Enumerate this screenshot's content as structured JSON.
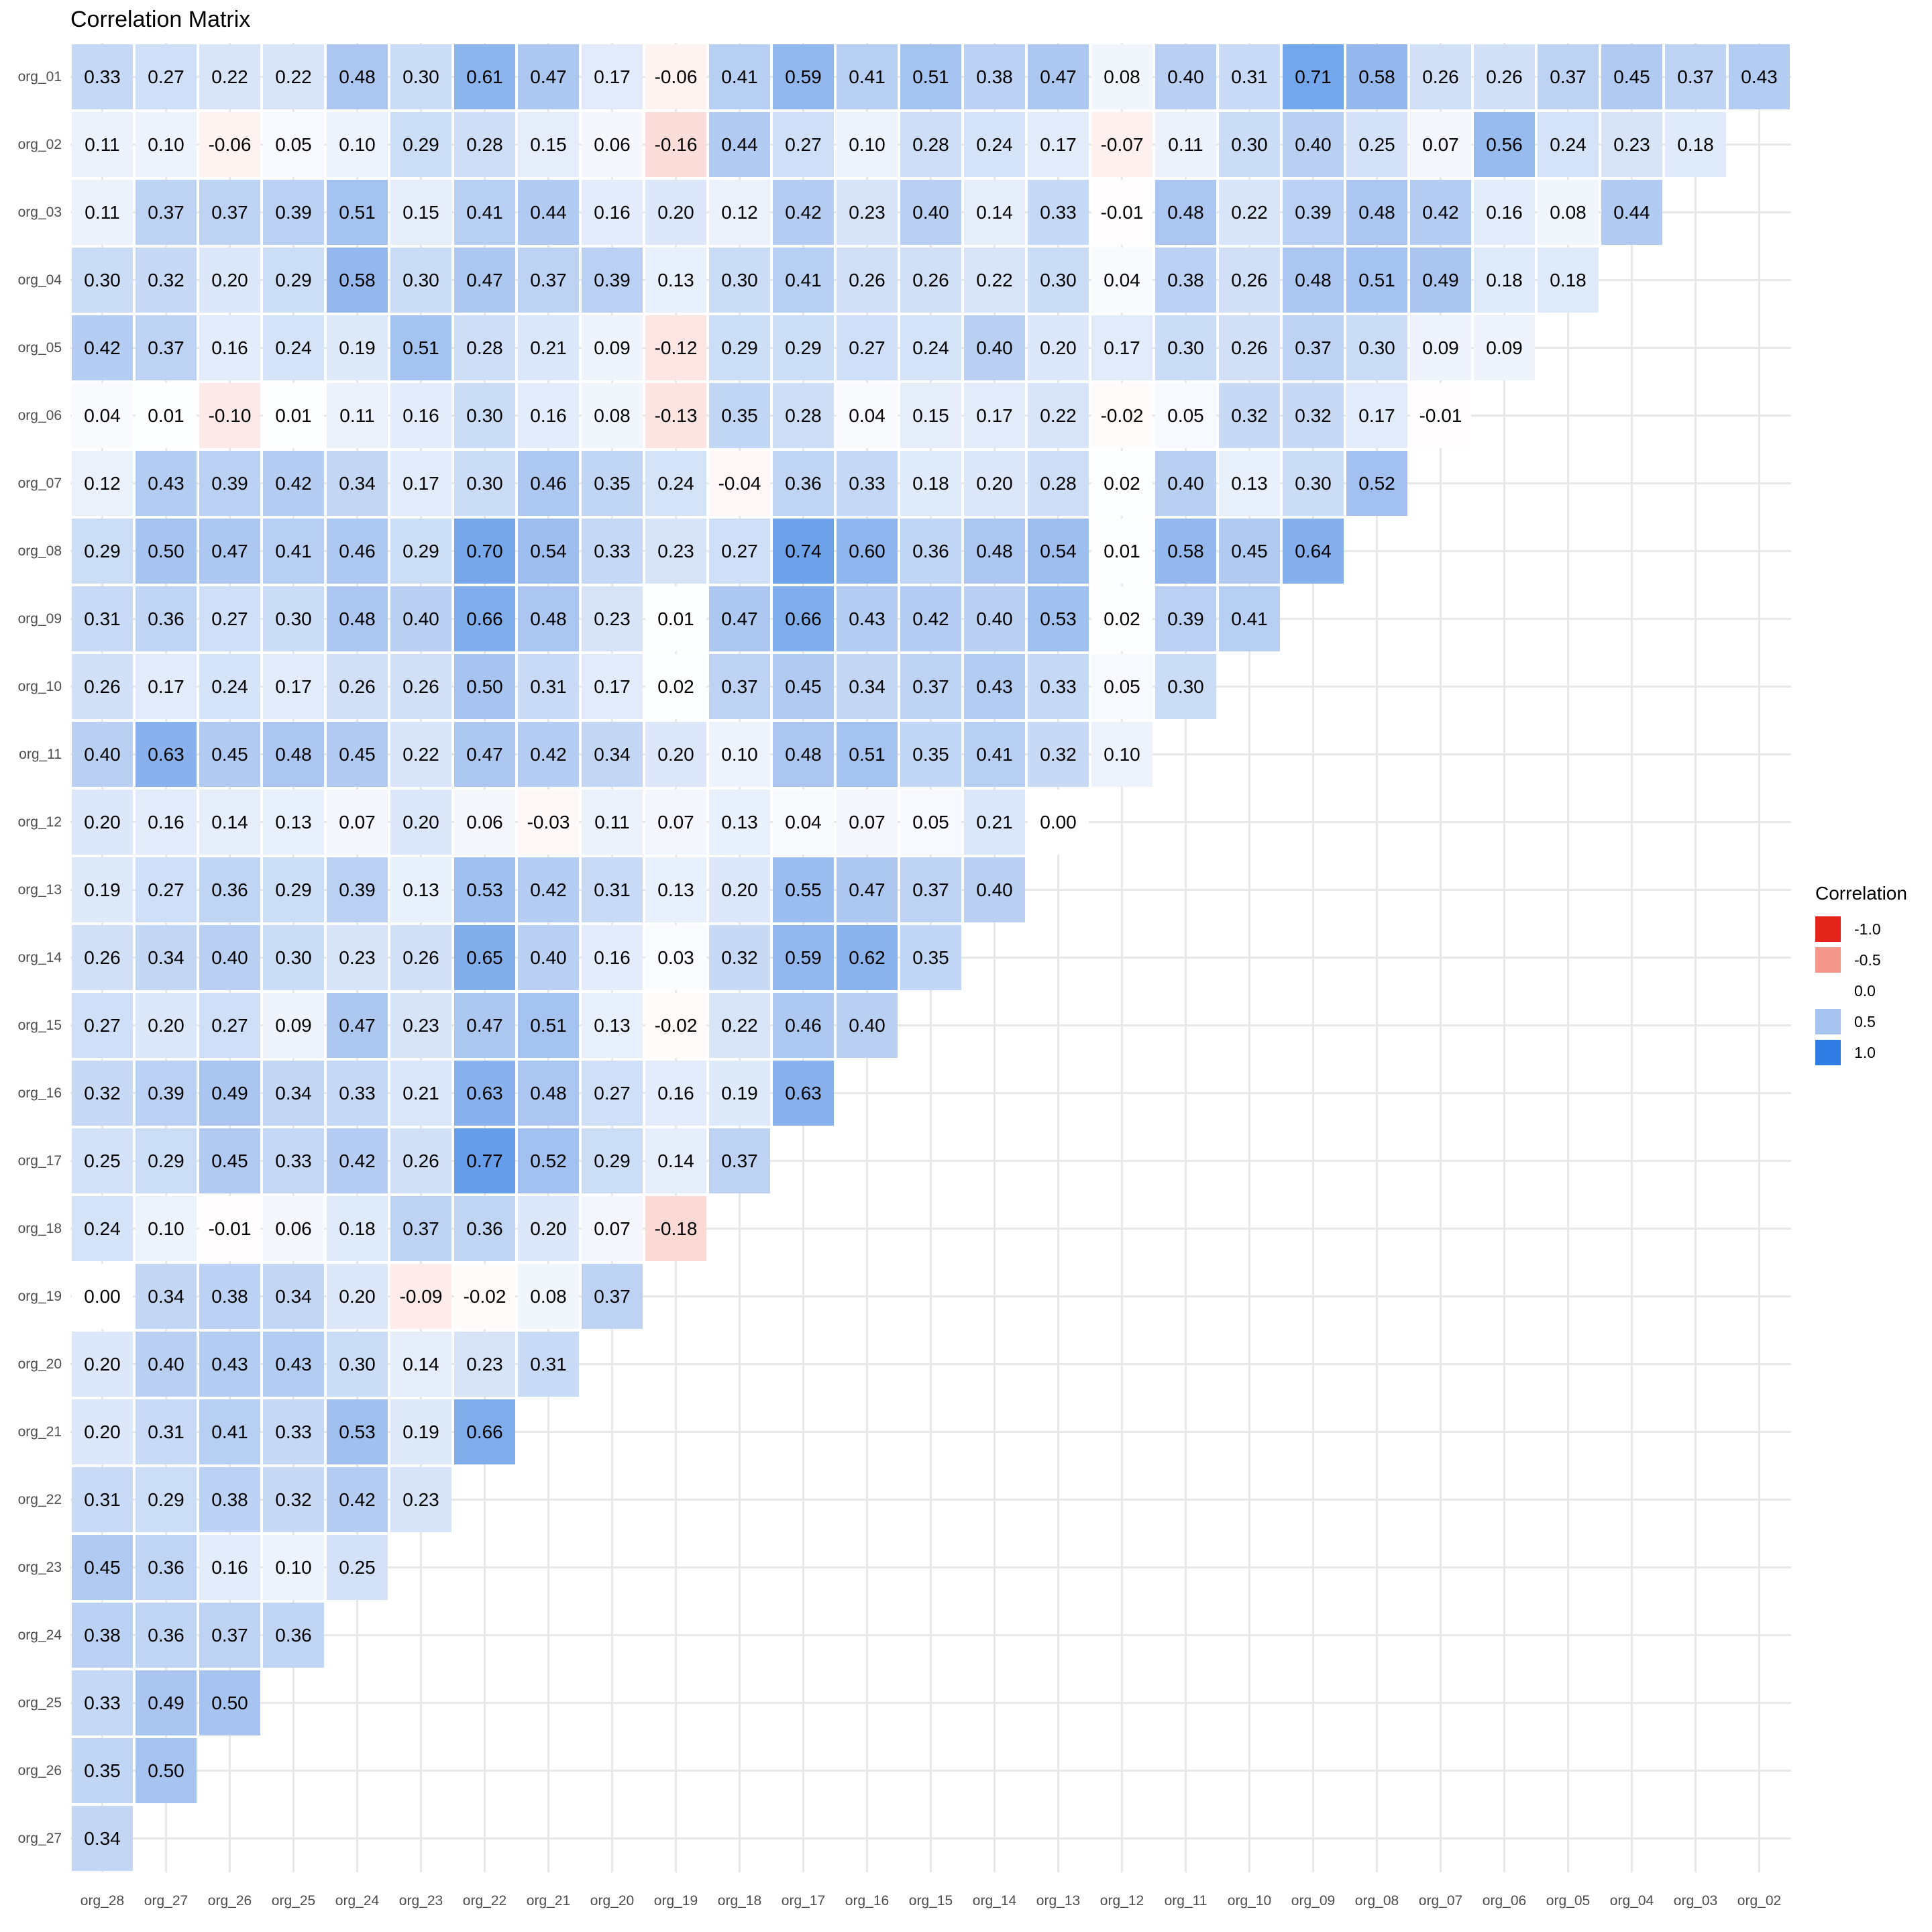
{
  "chart_data": {
    "type": "heatmap",
    "title": "Correlation Matrix",
    "rows": [
      "org_01",
      "org_02",
      "org_03",
      "org_04",
      "org_05",
      "org_06",
      "org_07",
      "org_08",
      "org_09",
      "org_10",
      "org_11",
      "org_12",
      "org_13",
      "org_14",
      "org_15",
      "org_16",
      "org_17",
      "org_18",
      "org_19",
      "org_20",
      "org_21",
      "org_22",
      "org_23",
      "org_24",
      "org_25",
      "org_26",
      "org_27"
    ],
    "columns": [
      "org_28",
      "org_27",
      "org_26",
      "org_25",
      "org_24",
      "org_23",
      "org_22",
      "org_21",
      "org_20",
      "org_19",
      "org_18",
      "org_17",
      "org_16",
      "org_15",
      "org_14",
      "org_13",
      "org_12",
      "org_11",
      "org_10",
      "org_09",
      "org_08",
      "org_07",
      "org_06",
      "org_05",
      "org_04",
      "org_03",
      "org_02"
    ],
    "values": [
      [
        0.33,
        0.27,
        0.22,
        0.22,
        0.48,
        0.3,
        0.61,
        0.47,
        0.17,
        -0.06,
        0.41,
        0.59,
        0.41,
        0.51,
        0.38,
        0.47,
        0.08,
        0.4,
        0.31,
        0.71,
        0.58,
        0.26,
        0.26,
        0.37,
        0.45,
        0.37,
        0.43
      ],
      [
        0.11,
        0.1,
        -0.06,
        0.05,
        0.1,
        0.29,
        0.28,
        0.15,
        0.06,
        -0.16,
        0.44,
        0.27,
        0.1,
        0.28,
        0.24,
        0.17,
        -0.07,
        0.11,
        0.3,
        0.4,
        0.25,
        0.07,
        0.56,
        0.24,
        0.23,
        0.18
      ],
      [
        0.11,
        0.37,
        0.37,
        0.39,
        0.51,
        0.15,
        0.41,
        0.44,
        0.16,
        0.2,
        0.12,
        0.42,
        0.23,
        0.4,
        0.14,
        0.33,
        -0.01,
        0.48,
        0.22,
        0.39,
        0.48,
        0.42,
        0.16,
        0.08,
        0.44
      ],
      [
        0.3,
        0.32,
        0.2,
        0.29,
        0.58,
        0.3,
        0.47,
        0.37,
        0.39,
        0.13,
        0.3,
        0.41,
        0.26,
        0.26,
        0.22,
        0.3,
        0.04,
        0.38,
        0.26,
        0.48,
        0.51,
        0.49,
        0.18,
        0.18
      ],
      [
        0.42,
        0.37,
        0.16,
        0.24,
        0.19,
        0.51,
        0.28,
        0.21,
        0.09,
        -0.12,
        0.29,
        0.29,
        0.27,
        0.24,
        0.4,
        0.2,
        0.17,
        0.3,
        0.26,
        0.37,
        0.3,
        0.09,
        0.09
      ],
      [
        0.04,
        0.01,
        -0.1,
        0.01,
        0.11,
        0.16,
        0.3,
        0.16,
        0.08,
        -0.13,
        0.35,
        0.28,
        0.04,
        0.15,
        0.17,
        0.22,
        -0.02,
        0.05,
        0.32,
        0.32,
        0.17,
        -0.01
      ],
      [
        0.12,
        0.43,
        0.39,
        0.42,
        0.34,
        0.17,
        0.3,
        0.46,
        0.35,
        0.24,
        -0.04,
        0.36,
        0.33,
        0.18,
        0.2,
        0.28,
        0.02,
        0.4,
        0.13,
        0.3,
        0.52
      ],
      [
        0.29,
        0.5,
        0.47,
        0.41,
        0.46,
        0.29,
        0.7,
        0.54,
        0.33,
        0.23,
        0.27,
        0.74,
        0.6,
        0.36,
        0.48,
        0.54,
        0.01,
        0.58,
        0.45,
        0.64
      ],
      [
        0.31,
        0.36,
        0.27,
        0.3,
        0.48,
        0.4,
        0.66,
        0.48,
        0.23,
        0.01,
        0.47,
        0.66,
        0.43,
        0.42,
        0.4,
        0.53,
        0.02,
        0.39,
        0.41
      ],
      [
        0.26,
        0.17,
        0.24,
        0.17,
        0.26,
        0.26,
        0.5,
        0.31,
        0.17,
        0.02,
        0.37,
        0.45,
        0.34,
        0.37,
        0.43,
        0.33,
        0.05,
        0.3
      ],
      [
        0.4,
        0.63,
        0.45,
        0.48,
        0.45,
        0.22,
        0.47,
        0.42,
        0.34,
        0.2,
        0.1,
        0.48,
        0.51,
        0.35,
        0.41,
        0.32,
        0.1
      ],
      [
        0.2,
        0.16,
        0.14,
        0.13,
        0.07,
        0.2,
        0.06,
        -0.03,
        0.11,
        0.07,
        0.13,
        0.04,
        0.07,
        0.05,
        0.21,
        0.0
      ],
      [
        0.19,
        0.27,
        0.36,
        0.29,
        0.39,
        0.13,
        0.53,
        0.42,
        0.31,
        0.13,
        0.2,
        0.55,
        0.47,
        0.37,
        0.4
      ],
      [
        0.26,
        0.34,
        0.4,
        0.3,
        0.23,
        0.26,
        0.65,
        0.4,
        0.16,
        0.03,
        0.32,
        0.59,
        0.62,
        0.35
      ],
      [
        0.27,
        0.2,
        0.27,
        0.09,
        0.47,
        0.23,
        0.47,
        0.51,
        0.13,
        -0.02,
        0.22,
        0.46,
        0.4
      ],
      [
        0.32,
        0.39,
        0.49,
        0.34,
        0.33,
        0.21,
        0.63,
        0.48,
        0.27,
        0.16,
        0.19,
        0.63
      ],
      [
        0.25,
        0.29,
        0.45,
        0.33,
        0.42,
        0.26,
        0.77,
        0.52,
        0.29,
        0.14,
        0.37
      ],
      [
        0.24,
        0.1,
        -0.01,
        0.06,
        0.18,
        0.37,
        0.36,
        0.2,
        0.07,
        -0.18
      ],
      [
        0.0,
        0.34,
        0.38,
        0.34,
        0.2,
        -0.09,
        -0.02,
        0.08,
        0.37
      ],
      [
        0.2,
        0.4,
        0.43,
        0.43,
        0.3,
        0.14,
        0.23,
        0.31
      ],
      [
        0.2,
        0.31,
        0.41,
        0.33,
        0.53,
        0.19,
        0.66
      ],
      [
        0.31,
        0.29,
        0.38,
        0.32,
        0.42,
        0.23
      ],
      [
        0.45,
        0.36,
        0.16,
        0.1,
        0.25
      ],
      [
        0.38,
        0.36,
        0.37,
        0.36
      ],
      [
        0.33,
        0.49,
        0.5
      ],
      [
        0.35,
        0.5
      ],
      [
        0.34
      ]
    ],
    "value_decimals": 2,
    "grid": true,
    "grid_color": "#e8e8e8",
    "legend_position": "right",
    "color_scale": {
      "domain": [
        -1,
        -0.5,
        0,
        0.5,
        1
      ],
      "colors": [
        "#e3251c",
        "#f4978a",
        "#ffffff",
        "#a7c4f0",
        "#2e7ce4"
      ]
    },
    "legend": {
      "title": "Correlation",
      "entries": [
        {
          "label": "-1.0",
          "color": "#e3251c"
        },
        {
          "label": "-0.5",
          "color": "#f4978a"
        },
        {
          "label": "0.0",
          "color": "#ffffff"
        },
        {
          "label": "0.5",
          "color": "#a7c4f0"
        },
        {
          "label": "1.0",
          "color": "#2e7ce4"
        }
      ]
    }
  }
}
